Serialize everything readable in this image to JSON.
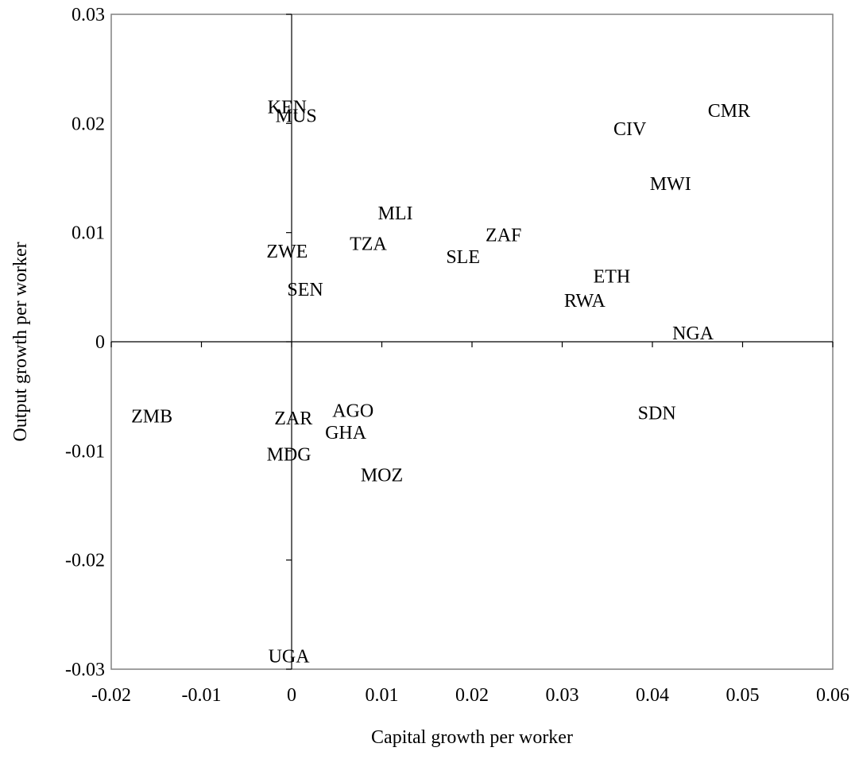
{
  "chart_data": {
    "type": "scatter",
    "xlabel": "Capital growth per worker",
    "ylabel": "Output growth per worker",
    "xlim": [
      -0.02,
      0.06
    ],
    "ylim": [
      -0.03,
      0.03
    ],
    "xticks": [
      -0.02,
      -0.01,
      0,
      0.01,
      0.02,
      0.03,
      0.04,
      0.05,
      0.06
    ],
    "yticks": [
      -0.03,
      -0.02,
      -0.01,
      0,
      0.01,
      0.02,
      0.03
    ],
    "xtick_labels": [
      "-0.02",
      "-0.01",
      "0",
      "0.01",
      "0.02",
      "0.03",
      "0.04",
      "0.05",
      "0.06"
    ],
    "ytick_labels": [
      "-0.03",
      "-0.02",
      "-0.01",
      "0",
      "0.01",
      "0.02",
      "0.03"
    ],
    "grid": false,
    "points": [
      {
        "label": "KEN",
        "x": -0.0005,
        "y": 0.0215
      },
      {
        "label": "MUS",
        "x": 0.0005,
        "y": 0.0207
      },
      {
        "label": "CMR",
        "x": 0.0485,
        "y": 0.0212
      },
      {
        "label": "CIV",
        "x": 0.0375,
        "y": 0.0195
      },
      {
        "label": "MWI",
        "x": 0.042,
        "y": 0.0145
      },
      {
        "label": "MLI",
        "x": 0.0115,
        "y": 0.0118
      },
      {
        "label": "ZAF",
        "x": 0.0235,
        "y": 0.0098
      },
      {
        "label": "TZA",
        "x": 0.0085,
        "y": 0.009
      },
      {
        "label": "ZWE",
        "x": -0.0005,
        "y": 0.0083
      },
      {
        "label": "SLE",
        "x": 0.019,
        "y": 0.0078
      },
      {
        "label": "ETH",
        "x": 0.0355,
        "y": 0.006
      },
      {
        "label": "SEN",
        "x": 0.0015,
        "y": 0.0048
      },
      {
        "label": "RWA",
        "x": 0.0325,
        "y": 0.0038
      },
      {
        "label": "NGA",
        "x": 0.0445,
        "y": 0.0008
      },
      {
        "label": "ZMB",
        "x": -0.0155,
        "y": -0.0068
      },
      {
        "label": "ZAR",
        "x": 0.0002,
        "y": -0.007
      },
      {
        "label": "AGO",
        "x": 0.0068,
        "y": -0.0063
      },
      {
        "label": "SDN",
        "x": 0.0405,
        "y": -0.0065
      },
      {
        "label": "GHA",
        "x": 0.006,
        "y": -0.0083
      },
      {
        "label": "MDG",
        "x": -0.0003,
        "y": -0.0103
      },
      {
        "label": "MOZ",
        "x": 0.01,
        "y": -0.0122
      },
      {
        "label": "UGA",
        "x": -0.0003,
        "y": -0.0288
      }
    ]
  }
}
